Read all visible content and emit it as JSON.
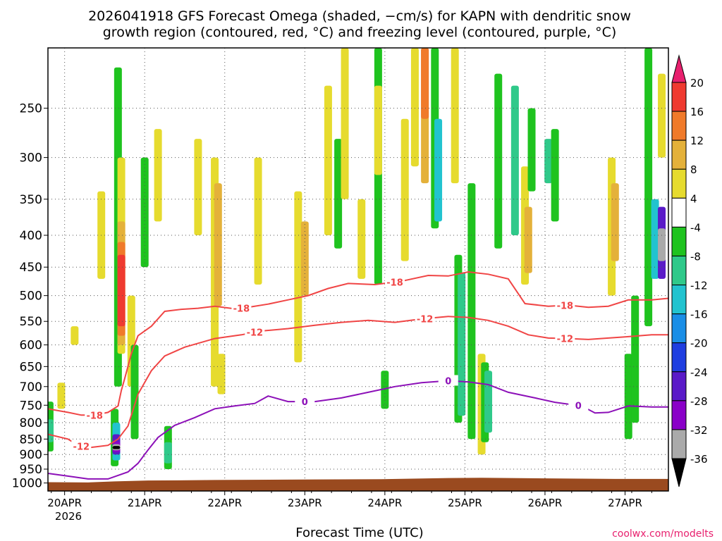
{
  "chart_data": {
    "type": "heatmap",
    "title_line1": "2026041918 GFS Forecast Omega (shaded, −cm/s) for KAPN with dendritic snow",
    "title_line2": "growth region (contoured, red, °C) and freezing level (contoured, purple, °C)",
    "xlabel": "Forecast Time (UTC)",
    "ylabel": "",
    "credit": "coolwx.com/modelts",
    "x_ticks": [
      {
        "label": "20APR",
        "hour": 5
      },
      {
        "label": "21APR",
        "hour": 29
      },
      {
        "label": "22APR",
        "hour": 53
      },
      {
        "label": "23APR",
        "hour": 77
      },
      {
        "label": "24APR",
        "hour": 101
      },
      {
        "label": "25APR",
        "hour": 125
      },
      {
        "label": "26APR",
        "hour": 149
      },
      {
        "label": "27APR",
        "hour": 173
      }
    ],
    "x_year_label": "2026",
    "xlim_hours": [
      0,
      186
    ],
    "y_ticks": [
      250,
      300,
      350,
      400,
      450,
      500,
      550,
      600,
      650,
      700,
      750,
      800,
      850,
      900,
      950,
      1000
    ],
    "ylim_hPa": [
      200,
      1030
    ],
    "colorbar_labels": [
      "20",
      "16",
      "12",
      "8",
      "4",
      "-4",
      "-8",
      "-12",
      "-16",
      "-20",
      "-24",
      "-28",
      "-32",
      "-36"
    ],
    "colorbar_colors": [
      "#e8206e",
      "#ef3a30",
      "#f07a2a",
      "#e4b13a",
      "#e6db2e",
      "#ffffff",
      "#1fc31f",
      "#2fc98a",
      "#22c3cf",
      "#1a8ee6",
      "#1f3ee0",
      "#5a1ac8",
      "#8a00c8",
      "#aaaaaa",
      "#000000"
    ],
    "series": [
      {
        "name": "-18 isotherm",
        "color": "#f04545",
        "label": "-18",
        "points": [
          [
            0,
            760
          ],
          [
            6,
            770
          ],
          [
            10,
            778
          ],
          [
            14,
            778
          ],
          [
            18,
            770
          ],
          [
            21,
            752
          ],
          [
            22,
            710
          ],
          [
            23,
            680
          ],
          [
            25,
            620
          ],
          [
            27,
            580
          ],
          [
            31,
            560
          ],
          [
            35,
            530
          ],
          [
            40,
            526
          ],
          [
            45,
            524
          ],
          [
            50,
            520
          ],
          [
            56,
            525
          ],
          [
            60,
            522
          ],
          [
            66,
            516
          ],
          [
            72,
            508
          ],
          [
            78,
            500
          ],
          [
            84,
            487
          ],
          [
            90,
            478
          ],
          [
            98,
            480
          ],
          [
            106,
            474
          ],
          [
            114,
            464
          ],
          [
            120,
            465
          ],
          [
            126,
            458
          ],
          [
            132,
            462
          ],
          [
            138,
            470
          ],
          [
            143,
            515
          ],
          [
            150,
            520
          ],
          [
            156,
            518
          ],
          [
            162,
            522
          ],
          [
            168,
            520
          ],
          [
            174,
            508
          ],
          [
            181,
            508
          ],
          [
            186,
            505
          ]
        ],
        "label_hours": [
          14,
          58,
          104,
          155
        ]
      },
      {
        "name": "-12 isotherm",
        "color": "#f04545",
        "label": "-12",
        "points": [
          [
            0,
            835
          ],
          [
            6,
            850
          ],
          [
            9,
            870
          ],
          [
            12,
            878
          ],
          [
            18,
            870
          ],
          [
            21,
            850
          ],
          [
            24,
            810
          ],
          [
            27,
            720
          ],
          [
            31,
            660
          ],
          [
            35,
            625
          ],
          [
            41,
            605
          ],
          [
            50,
            586
          ],
          [
            58,
            578
          ],
          [
            64,
            570
          ],
          [
            72,
            565
          ],
          [
            80,
            558
          ],
          [
            88,
            552
          ],
          [
            96,
            548
          ],
          [
            104,
            552
          ],
          [
            112,
            545
          ],
          [
            120,
            540
          ],
          [
            126,
            542
          ],
          [
            132,
            548
          ],
          [
            138,
            560
          ],
          [
            144,
            578
          ],
          [
            150,
            585
          ],
          [
            156,
            586
          ],
          [
            162,
            588
          ],
          [
            168,
            585
          ],
          [
            174,
            582
          ],
          [
            181,
            578
          ],
          [
            186,
            578
          ]
        ],
        "label_hours": [
          10,
          62,
          113,
          155
        ]
      },
      {
        "name": "0 isotherm (freezing level)",
        "color": "#8c10b8",
        "label": "0",
        "points": [
          [
            0,
            965
          ],
          [
            6,
            975
          ],
          [
            12,
            985
          ],
          [
            18,
            985
          ],
          [
            24,
            960
          ],
          [
            27,
            930
          ],
          [
            30,
            885
          ],
          [
            33,
            845
          ],
          [
            38,
            808
          ],
          [
            44,
            785
          ],
          [
            50,
            760
          ],
          [
            56,
            752
          ],
          [
            62,
            745
          ],
          [
            66,
            725
          ],
          [
            72,
            740
          ],
          [
            80,
            740
          ],
          [
            88,
            730
          ],
          [
            96,
            715
          ],
          [
            104,
            700
          ],
          [
            112,
            690
          ],
          [
            120,
            685
          ],
          [
            126,
            688
          ],
          [
            132,
            695
          ],
          [
            138,
            715
          ],
          [
            146,
            730
          ],
          [
            152,
            742
          ],
          [
            160,
            752
          ],
          [
            164,
            772
          ],
          [
            168,
            770
          ],
          [
            174,
            752
          ],
          [
            181,
            755
          ],
          [
            186,
            755
          ]
        ],
        "label_hours": [
          77,
          120,
          159
        ]
      }
    ],
    "shaded_regions": [
      {
        "hour": 0.5,
        "p1": 740,
        "p2": 890,
        "value": -8
      },
      {
        "hour": 0.5,
        "p1": 790,
        "p2": 860,
        "value": -12
      },
      {
        "hour": 4,
        "p1": 690,
        "p2": 760,
        "value": 4
      },
      {
        "hour": 8,
        "p1": 560,
        "p2": 600,
        "value": 4
      },
      {
        "hour": 16,
        "p1": 340,
        "p2": 470,
        "value": 4
      },
      {
        "hour": 20,
        "p1": 760,
        "p2": 940,
        "value": -8
      },
      {
        "hour": 20.5,
        "p1": 800,
        "p2": 920,
        "value": -16
      },
      {
        "hour": 20.5,
        "p1": 835,
        "p2": 900,
        "value": -24
      },
      {
        "hour": 20.5,
        "p1": 858,
        "p2": 892,
        "value": -28
      },
      {
        "hour": 20.5,
        "p1": 866,
        "p2": 886,
        "value": -32
      },
      {
        "hour": 20.5,
        "p1": 872,
        "p2": 882,
        "value": -36
      },
      {
        "hour": 21,
        "p1": 215,
        "p2": 700,
        "value": -8
      },
      {
        "hour": 22,
        "p1": 300,
        "p2": 620,
        "value": 4
      },
      {
        "hour": 22,
        "p1": 380,
        "p2": 600,
        "value": 8
      },
      {
        "hour": 22,
        "p1": 410,
        "p2": 580,
        "value": 12
      },
      {
        "hour": 22,
        "p1": 430,
        "p2": 560,
        "value": 16
      },
      {
        "hour": 25,
        "p1": 500,
        "p2": 700,
        "value": 4
      },
      {
        "hour": 26,
        "p1": 600,
        "p2": 850,
        "value": -8
      },
      {
        "hour": 29,
        "p1": 300,
        "p2": 450,
        "value": -8
      },
      {
        "hour": 33,
        "p1": 270,
        "p2": 380,
        "value": 4
      },
      {
        "hour": 36,
        "p1": 810,
        "p2": 950,
        "value": -8
      },
      {
        "hour": 36,
        "p1": 860,
        "p2": 930,
        "value": -12
      },
      {
        "hour": 45,
        "p1": 280,
        "p2": 400,
        "value": 4
      },
      {
        "hour": 50,
        "p1": 300,
        "p2": 700,
        "value": 4
      },
      {
        "hour": 51,
        "p1": 330,
        "p2": 520,
        "value": 8
      },
      {
        "hour": 52,
        "p1": 620,
        "p2": 720,
        "value": 4
      },
      {
        "hour": 63,
        "p1": 300,
        "p2": 480,
        "value": 4
      },
      {
        "hour": 75,
        "p1": 340,
        "p2": 640,
        "value": 4
      },
      {
        "hour": 77,
        "p1": 380,
        "p2": 500,
        "value": 8
      },
      {
        "hour": 84,
        "p1": 230,
        "p2": 400,
        "value": 4
      },
      {
        "hour": 87,
        "p1": 280,
        "p2": 420,
        "value": -8
      },
      {
        "hour": 89,
        "p1": 200,
        "p2": 350,
        "value": 4
      },
      {
        "hour": 94,
        "p1": 350,
        "p2": 470,
        "value": 4
      },
      {
        "hour": 99,
        "p1": 200,
        "p2": 480,
        "value": -8
      },
      {
        "hour": 99,
        "p1": 230,
        "p2": 320,
        "value": 4
      },
      {
        "hour": 101,
        "p1": 660,
        "p2": 760,
        "value": -8
      },
      {
        "hour": 107,
        "p1": 260,
        "p2": 440,
        "value": 4
      },
      {
        "hour": 110,
        "p1": 200,
        "p2": 310,
        "value": 4
      },
      {
        "hour": 113,
        "p1": 200,
        "p2": 330,
        "value": 8
      },
      {
        "hour": 113,
        "p1": 200,
        "p2": 260,
        "value": 12
      },
      {
        "hour": 116,
        "p1": 200,
        "p2": 390,
        "value": -8
      },
      {
        "hour": 117,
        "p1": 260,
        "p2": 380,
        "value": -16
      },
      {
        "hour": 122,
        "p1": 200,
        "p2": 330,
        "value": 4
      },
      {
        "hour": 123,
        "p1": 430,
        "p2": 800,
        "value": -8
      },
      {
        "hour": 124,
        "p1": 460,
        "p2": 780,
        "value": -12
      },
      {
        "hour": 127,
        "p1": 330,
        "p2": 850,
        "value": -8
      },
      {
        "hour": 130,
        "p1": 620,
        "p2": 900,
        "value": 4
      },
      {
        "hour": 131,
        "p1": 640,
        "p2": 860,
        "value": -8
      },
      {
        "hour": 132,
        "p1": 660,
        "p2": 830,
        "value": -12
      },
      {
        "hour": 135,
        "p1": 220,
        "p2": 420,
        "value": -8
      },
      {
        "hour": 140,
        "p1": 230,
        "p2": 400,
        "value": -12
      },
      {
        "hour": 143,
        "p1": 310,
        "p2": 480,
        "value": 4
      },
      {
        "hour": 144,
        "p1": 360,
        "p2": 460,
        "value": 8
      },
      {
        "hour": 145,
        "p1": 250,
        "p2": 340,
        "value": -8
      },
      {
        "hour": 150,
        "p1": 280,
        "p2": 330,
        "value": -12
      },
      {
        "hour": 152,
        "p1": 270,
        "p2": 380,
        "value": -8
      },
      {
        "hour": 169,
        "p1": 300,
        "p2": 500,
        "value": 4
      },
      {
        "hour": 170,
        "p1": 330,
        "p2": 440,
        "value": 8
      },
      {
        "hour": 174,
        "p1": 620,
        "p2": 850,
        "value": -8
      },
      {
        "hour": 176,
        "p1": 500,
        "p2": 800,
        "value": -8
      },
      {
        "hour": 180,
        "p1": 200,
        "p2": 560,
        "value": -8
      },
      {
        "hour": 182,
        "p1": 350,
        "p2": 470,
        "value": -16
      },
      {
        "hour": 184,
        "p1": 360,
        "p2": 470,
        "value": -24
      },
      {
        "hour": 184,
        "p1": 390,
        "p2": 440,
        "value": -32
      },
      {
        "hour": 184,
        "p1": 220,
        "p2": 300,
        "value": 4
      }
    ],
    "terrain_color": "#9a4a1f"
  }
}
